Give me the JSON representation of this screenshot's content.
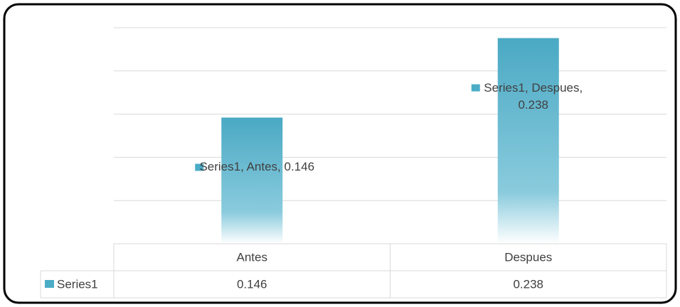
{
  "chart_data": {
    "type": "bar",
    "categories": [
      "Antes",
      "Despues"
    ],
    "series": [
      {
        "name": "Series1",
        "color": "#4bacc6",
        "values": [
          0.146,
          0.238
        ],
        "value_labels": [
          "Series1, Antes, 0.146",
          "Series1, Despues, 0.238"
        ]
      }
    ],
    "ylim": [
      0,
      0.25
    ],
    "yticks": [
      0,
      0.05,
      0.1,
      0.15,
      0.2,
      0.25
    ],
    "grid": true,
    "data_table": true
  }
}
